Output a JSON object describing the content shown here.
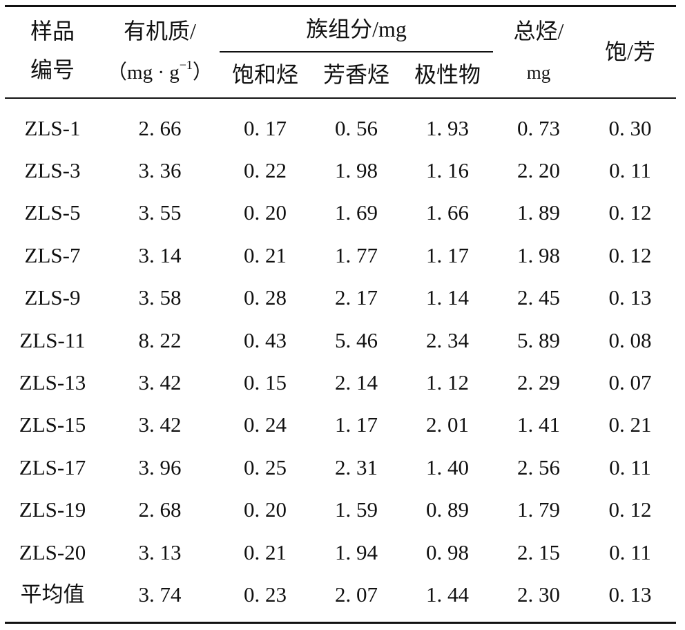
{
  "table": {
    "header": {
      "sample_id": [
        "样品",
        "编号"
      ],
      "organic_matter": {
        "label": "有机质/",
        "unit_prefix": "（mg · g",
        "unit_sup": "−1",
        "unit_suffix": "）"
      },
      "group_components": {
        "label": "族组分/mg",
        "saturated": "饱和烃",
        "aromatic": "芳香烃",
        "polar": "极性物"
      },
      "total_hydrocarbon": {
        "label": "总烃/",
        "unit": "mg"
      },
      "sat_arom_ratio": "饱/芳"
    },
    "rows": [
      [
        "ZLS-1",
        "2. 66",
        "0. 17",
        "0. 56",
        "1. 93",
        "0. 73",
        "0. 30"
      ],
      [
        "ZLS-3",
        "3. 36",
        "0. 22",
        "1. 98",
        "1. 16",
        "2. 20",
        "0. 11"
      ],
      [
        "ZLS-5",
        "3. 55",
        "0. 20",
        "1. 69",
        "1. 66",
        "1. 89",
        "0. 12"
      ],
      [
        "ZLS-7",
        "3. 14",
        "0. 21",
        "1. 77",
        "1. 17",
        "1. 98",
        "0. 12"
      ],
      [
        "ZLS-9",
        "3. 58",
        "0. 28",
        "2. 17",
        "1. 14",
        "2. 45",
        "0. 13"
      ],
      [
        "ZLS-11",
        "8. 22",
        "0. 43",
        "5. 46",
        "2. 34",
        "5. 89",
        "0. 08"
      ],
      [
        "ZLS-13",
        "3. 42",
        "0. 15",
        "2. 14",
        "1. 12",
        "2. 29",
        "0. 07"
      ],
      [
        "ZLS-15",
        "3. 42",
        "0. 24",
        "1. 17",
        "2. 01",
        "1. 41",
        "0. 21"
      ],
      [
        "ZLS-17",
        "3. 96",
        "0. 25",
        "2. 31",
        "1. 40",
        "2. 56",
        "0. 11"
      ],
      [
        "ZLS-19",
        "2. 68",
        "0. 20",
        "1. 59",
        "0. 89",
        "1. 79",
        "0. 12"
      ],
      [
        "ZLS-20",
        "3. 13",
        "0. 21",
        "1. 94",
        "0. 98",
        "2. 15",
        "0. 11"
      ],
      [
        "平均值",
        "3. 74",
        "0. 23",
        "2. 07",
        "1. 44",
        "2. 30",
        "0. 13"
      ]
    ]
  }
}
